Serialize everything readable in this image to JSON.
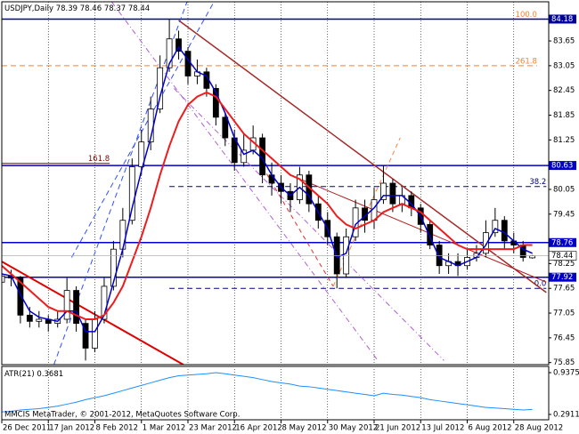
{
  "chart_data": {
    "type": "candlestick",
    "symbol": "USDJPY,Daily",
    "footer": "MMCIS MetaTrader, © 2001-2012, MetaQuotes Software Corp.",
    "categories": [
      "26 Dec 2011",
      null,
      null,
      null,
      null,
      "17 Jan 2012",
      null,
      null,
      null,
      null,
      "8 Feb 2012",
      null,
      null,
      null,
      null,
      "1 Mar 2012",
      null,
      null,
      null,
      null,
      "23 Mar 2012",
      null,
      null,
      null,
      null,
      "16 Apr 2012",
      null,
      null,
      null,
      null,
      "8 May 2012",
      null,
      null,
      null,
      null,
      "30 May 2012",
      null,
      null,
      null,
      null,
      "21 Jun 2012",
      null,
      null,
      null,
      null,
      "13 Jul 2012",
      null,
      null,
      null,
      null,
      "6 Aug 2012",
      null,
      null,
      null,
      null,
      "28 Aug 2012",
      null,
      null
    ],
    "open": [
      77.8,
      77.95,
      77.9,
      77.0,
      76.85,
      76.9,
      76.8,
      76.9,
      77.6,
      76.8,
      76.2,
      76.9,
      77.7,
      78.6,
      79.3,
      80.6,
      81.2,
      82.0,
      83.0,
      83.7,
      83.4,
      82.8,
      82.9,
      82.5,
      81.8,
      81.3,
      80.7,
      81.0,
      81.3,
      80.4,
      80.2,
      80.0,
      79.8,
      80.4,
      79.7,
      79.3,
      78.9,
      78.0,
      78.9,
      79.6,
      79.3,
      79.8,
      80.2,
      79.7,
      79.9,
      79.6,
      79.2,
      78.7,
      78.2,
      78.3,
      78.2,
      78.4,
      78.5,
      79.0,
      79.3,
      78.8,
      78.7,
      78.39
    ],
    "high": [
      78.2,
      78.1,
      77.95,
      77.2,
      77.1,
      77.0,
      77.1,
      77.9,
      77.7,
      76.9,
      77.1,
      77.9,
      78.8,
      79.6,
      80.8,
      81.5,
      82.3,
      83.3,
      84.18,
      83.9,
      83.5,
      83.2,
      83.0,
      82.6,
      81.9,
      81.5,
      81.4,
      81.6,
      81.4,
      80.7,
      80.4,
      80.2,
      80.6,
      80.5,
      79.9,
      79.5,
      79.0,
      79.1,
      79.8,
      79.8,
      80.1,
      80.63,
      80.3,
      80.1,
      80.0,
      79.7,
      79.3,
      78.8,
      78.5,
      78.5,
      78.6,
      78.7,
      79.3,
      79.6,
      79.4,
      79.0,
      78.8,
      78.46
    ],
    "low": [
      77.6,
      77.7,
      76.8,
      76.7,
      76.7,
      76.6,
      76.7,
      76.8,
      76.6,
      75.9,
      76.1,
      76.8,
      77.6,
      78.4,
      79.2,
      80.4,
      81.0,
      81.9,
      82.9,
      83.2,
      82.6,
      82.6,
      82.3,
      81.6,
      81.1,
      80.5,
      80.6,
      80.9,
      80.2,
      79.9,
      79.7,
      79.5,
      79.7,
      79.5,
      79.1,
      78.7,
      77.65,
      77.9,
      78.8,
      79.0,
      79.1,
      79.7,
      79.5,
      79.5,
      79.4,
      79.0,
      78.6,
      78.0,
      78.0,
      77.95,
      78.1,
      78.3,
      78.4,
      78.9,
      78.6,
      78.5,
      78.3,
      78.37
    ],
    "close": [
      77.95,
      77.9,
      77.0,
      76.85,
      76.9,
      76.8,
      76.9,
      77.6,
      76.8,
      76.2,
      76.9,
      77.7,
      78.6,
      79.3,
      80.6,
      81.2,
      82.0,
      83.0,
      83.7,
      83.4,
      82.8,
      82.9,
      82.5,
      81.8,
      81.3,
      80.7,
      81.0,
      81.3,
      80.4,
      80.2,
      80.0,
      79.8,
      80.4,
      79.7,
      79.3,
      78.9,
      78.0,
      78.9,
      79.6,
      79.3,
      79.8,
      80.2,
      79.7,
      79.9,
      79.6,
      79.2,
      78.7,
      78.2,
      78.3,
      78.2,
      78.4,
      78.5,
      79.0,
      79.3,
      78.8,
      78.7,
      78.4,
      78.44
    ],
    "ylim": [
      75.8,
      84.6
    ],
    "yticks": [
      83.65,
      83.05,
      82.45,
      81.85,
      81.25,
      80.05,
      79.45,
      78.25,
      77.65,
      77.05,
      76.45,
      75.85
    ],
    "grid": true,
    "bull_color": "#ffffff",
    "bear_color": "#000000",
    "moving_averages": [
      {
        "color": "#0000c8",
        "values": [
          78.0,
          77.95,
          77.5,
          77.1,
          76.95,
          76.9,
          76.85,
          77.1,
          77.1,
          76.6,
          76.6,
          77.0,
          77.8,
          78.6,
          79.6,
          80.5,
          81.3,
          82.3,
          83.1,
          83.5,
          83.2,
          82.9,
          82.8,
          82.4,
          81.9,
          81.3,
          80.9,
          81.0,
          80.8,
          80.4,
          80.1,
          79.9,
          80.1,
          79.9,
          79.5,
          79.1,
          78.4,
          78.5,
          79.2,
          79.4,
          79.6,
          79.9,
          79.9,
          79.9,
          79.7,
          79.4,
          78.9,
          78.4,
          78.3,
          78.2,
          78.3,
          78.4,
          78.7,
          79.1,
          79.0,
          78.8,
          78.6,
          78.5
        ]
      },
      {
        "color": "#ee1c1c",
        "values": [
          78.2,
          78.0,
          77.8,
          77.6,
          77.4,
          77.2,
          77.1,
          77.1,
          77.0,
          76.9,
          76.9,
          77.0,
          77.3,
          77.7,
          78.3,
          78.9,
          79.6,
          80.4,
          81.1,
          81.7,
          82.1,
          82.3,
          82.4,
          82.3,
          82.0,
          81.7,
          81.4,
          81.2,
          81.0,
          80.8,
          80.6,
          80.4,
          80.3,
          80.1,
          79.9,
          79.7,
          79.4,
          79.2,
          79.1,
          79.2,
          79.3,
          79.5,
          79.6,
          79.7,
          79.6,
          79.5,
          79.3,
          79.1,
          78.9,
          78.7,
          78.6,
          78.6,
          78.6,
          78.6,
          78.6,
          78.6,
          78.7,
          78.7
        ]
      }
    ],
    "levels": [
      {
        "value": 84.18,
        "color": "#0000a0"
      },
      {
        "value": 80.63,
        "color": "#0000c8"
      },
      {
        "value": 78.76,
        "color": "#0000c8"
      },
      {
        "value": 77.92,
        "color": "#0000c8"
      }
    ],
    "price_line_color": "#b0b0b0",
    "fibo": [
      {
        "label": "100.0",
        "value": 84.18,
        "range": [
          18,
          57.5
        ],
        "color": "#ff7f27",
        "dashed": false
      },
      {
        "label": "261.8",
        "value": 83.05,
        "range": [
          0,
          57.5
        ],
        "color": "#ff7f27",
        "dashed": true
      },
      {
        "label": "161.8",
        "value": 80.68,
        "range": [
          0,
          11.6
        ],
        "color": "#8b0000",
        "dashed": false
      },
      {
        "label": "38.2",
        "value": 80.12,
        "range": [
          18,
          58.5
        ],
        "color": "#000080",
        "dashed": true
      },
      {
        "label": "0.0",
        "value": 77.65,
        "range": [
          18,
          58.5
        ],
        "color": "#000080",
        "dashed": true
      }
    ],
    "trendlines": [
      {
        "from": [
          0,
          78.3
        ],
        "to": [
          19.5,
          75.8
        ],
        "color": "#e00000",
        "width": 2,
        "dash": "none"
      },
      {
        "from": [
          19,
          84.15
        ],
        "to": [
          58.5,
          77.55
        ],
        "color": "#a52a2a",
        "width": 1.5,
        "dash": "none"
      },
      {
        "from": [
          7.5,
          78.4
        ],
        "to": [
          22.8,
          84.6
        ],
        "color": "#3050ff",
        "width": 1,
        "dash": "6 4"
      },
      {
        "from": [
          5.6,
          75.8
        ],
        "to": [
          19.9,
          84.6
        ],
        "color": "#3050ff",
        "width": 1,
        "dash": "6 4"
      },
      {
        "from": [
          11.8,
          84.6
        ],
        "to": [
          40.4,
          75.9
        ],
        "color": "#b060d0",
        "width": 1,
        "dash": "6 3 1 3"
      },
      {
        "from": [
          18.5,
          82.5
        ],
        "to": [
          47.5,
          75.9
        ],
        "color": "#b060d0",
        "width": 1,
        "dash": "6 3 1 3"
      },
      {
        "from": [
          28,
          80.6
        ],
        "to": [
          35.6,
          77.7
        ],
        "color": "#e03030",
        "width": 1,
        "dash": "5 4"
      },
      {
        "from": [
          35.6,
          77.7
        ],
        "to": [
          42.8,
          81.3
        ],
        "color": "#ff8040",
        "width": 1,
        "dash": "5 4"
      },
      {
        "from": [
          31,
          80.4
        ],
        "to": [
          58.5,
          77.8
        ],
        "color": "#b02020",
        "width": 1,
        "dash": "none"
      }
    ],
    "indicator": {
      "label": "ATR(21)",
      "color": "#1e90ff",
      "ylim": [
        0.2911,
        0.9375
      ],
      "yticks": [
        0.9375,
        0.2911
      ],
      "values": [
        0.33,
        0.34,
        0.36,
        0.37,
        0.38,
        0.4,
        0.42,
        0.45,
        0.48,
        0.52,
        0.55,
        0.58,
        0.62,
        0.66,
        0.7,
        0.74,
        0.78,
        0.82,
        0.86,
        0.89,
        0.9,
        0.91,
        0.92,
        0.9375,
        0.92,
        0.9,
        0.88,
        0.86,
        0.83,
        0.8,
        0.78,
        0.76,
        0.73,
        0.72,
        0.7,
        0.68,
        0.66,
        0.64,
        0.62,
        0.6,
        0.58,
        0.62,
        0.6,
        0.59,
        0.57,
        0.55,
        0.52,
        0.5,
        0.48,
        0.46,
        0.44,
        0.42,
        0.4,
        0.39,
        0.38,
        0.37,
        0.36,
        0.3681
      ]
    }
  }
}
